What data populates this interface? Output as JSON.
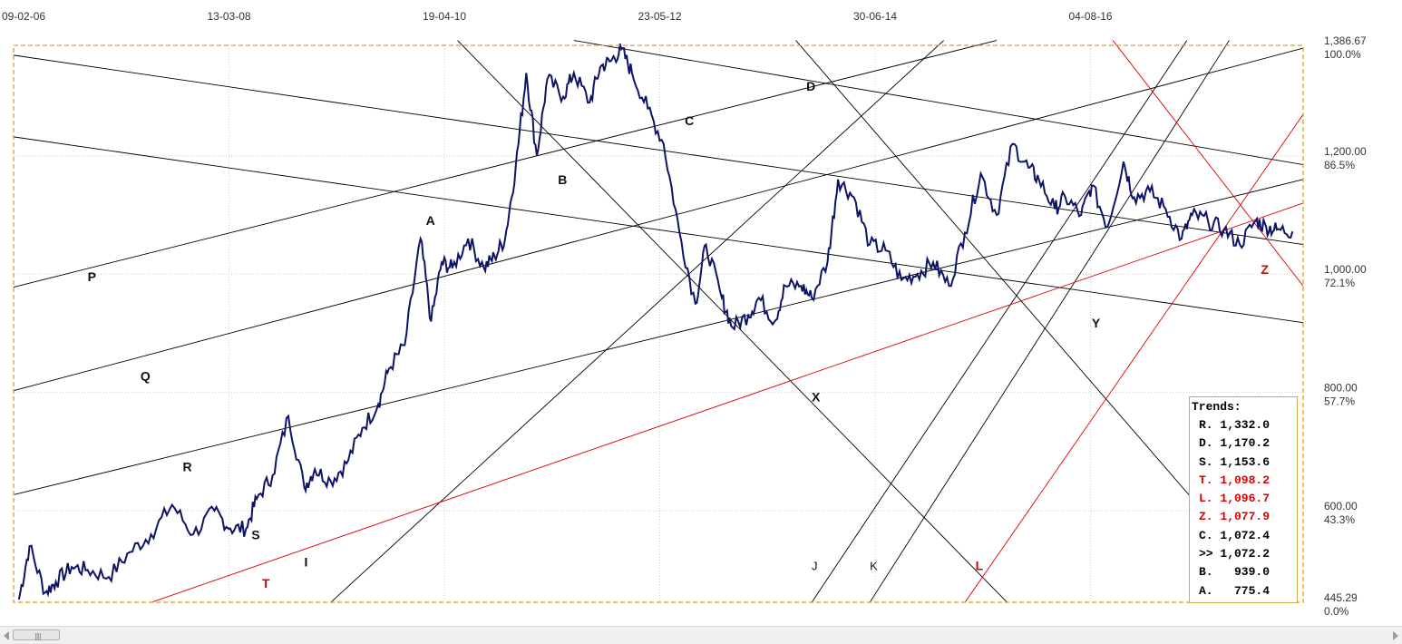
{
  "chart_data": {
    "type": "line",
    "title": "",
    "xlabel": "",
    "ylabel": "",
    "x_tick_labels": [
      "09-02-06",
      "13-03-08",
      "19-04-10",
      "23-05-12",
      "30-06-14",
      "04-08-16"
    ],
    "y_ticks": [
      {
        "value": 1386.67,
        "label": "1,386.67",
        "pct": "100.0%"
      },
      {
        "value": 1200.0,
        "label": "1,200.00",
        "pct": "86.5%"
      },
      {
        "value": 1000.0,
        "label": "1,000.00",
        "pct": "72.1%"
      },
      {
        "value": 800.0,
        "label": "800.00",
        "pct": "57.7%"
      },
      {
        "value": 600.0,
        "label": "600.00",
        "pct": "43.3%"
      },
      {
        "value": 445.29,
        "label": "445.29",
        "pct": "0.0%"
      }
    ],
    "ylim": [
      445.29,
      1386.67
    ],
    "grid": true,
    "colors": {
      "price": "#0d1466",
      "trend_black": "#000000",
      "trend_red": "#dd0000",
      "frame": "#d6a020"
    },
    "price_series": {
      "name": "",
      "x": [
        2006.05,
        2006.15,
        2006.3,
        2006.4,
        2006.55,
        2006.7,
        2006.9,
        2007.1,
        2007.3,
        2007.5,
        2007.7,
        2007.9,
        2008.05,
        2008.2,
        2008.3,
        2008.45,
        2008.6,
        2008.75,
        2008.85,
        2009.0,
        2009.15,
        2009.3,
        2009.45,
        2009.55,
        2009.7,
        2009.85,
        2009.95,
        2010.05,
        2010.15,
        2010.3,
        2010.45,
        2010.55,
        2010.65,
        2010.75,
        2010.85,
        2010.95,
        2011.05,
        2011.2,
        2011.3,
        2011.45,
        2011.55,
        2011.65,
        2011.75,
        2011.85,
        2012.0,
        2012.15,
        2012.3,
        2012.45,
        2012.55,
        2012.7,
        2012.8,
        2012.95,
        2013.05,
        2013.2,
        2013.3,
        2013.45,
        2013.55,
        2013.7,
        2013.8,
        2013.95,
        2014.1,
        2014.25,
        2014.4,
        2014.55,
        2014.7,
        2014.85,
        2015.0,
        2015.15,
        2015.3,
        2015.45,
        2015.6,
        2015.7,
        2015.85,
        2015.95,
        2016.1,
        2016.2,
        2016.35,
        2016.5,
        2016.6,
        2016.75,
        2016.9,
        2017.05,
        2017.15,
        2017.3,
        2017.45,
        2017.6,
        2017.75,
        2017.85,
        2017.95,
        2018.1
      ],
      "values": [
        450,
        540,
        462,
        480,
        505,
        500,
        488,
        530,
        560,
        610,
        560,
        600,
        570,
        570,
        620,
        660,
        760,
        640,
        670,
        650,
        680,
        740,
        780,
        840,
        880,
        1060,
        920,
        1020,
        1010,
        1060,
        1010,
        1030,
        1060,
        1180,
        1340,
        1200,
        1330,
        1300,
        1340,
        1290,
        1350,
        1360,
        1380,
        1340,
        1280,
        1220,
        1070,
        950,
        1050,
        960,
        910,
        930,
        960,
        920,
        980,
        980,
        960,
        1020,
        1160,
        1130,
        1050,
        1040,
        990,
        1000,
        1020,
        980,
        1070,
        1170,
        1100,
        1220,
        1180,
        1160,
        1110,
        1130,
        1100,
        1150,
        1080,
        1190,
        1130,
        1140,
        1110,
        1060,
        1100,
        1090,
        1075,
        1050,
        1090,
        1080,
        1075,
        1072
      ]
    },
    "trend_labels": [
      {
        "id": "P",
        "color": "black",
        "x": 2006.7,
        "y": 988
      },
      {
        "id": "Q",
        "color": "black",
        "x": 2007.2,
        "y": 820
      },
      {
        "id": "R",
        "color": "black",
        "x": 2007.6,
        "y": 667
      },
      {
        "id": "S",
        "color": "black",
        "x": 2008.25,
        "y": 552
      },
      {
        "id": "T",
        "color": "red",
        "x": 2008.35,
        "y": 470
      },
      {
        "id": "I",
        "color": "black",
        "x": 2008.75,
        "y": 506
      },
      {
        "id": "A",
        "color": "black",
        "x": 2009.9,
        "y": 1083
      },
      {
        "id": "B",
        "color": "black",
        "x": 2011.15,
        "y": 1152
      },
      {
        "id": "C",
        "color": "black",
        "x": 2012.35,
        "y": 1252
      },
      {
        "id": "D",
        "color": "black",
        "x": 2013.5,
        "y": 1310
      },
      {
        "id": "X",
        "color": "black",
        "x": 2013.55,
        "y": 785
      },
      {
        "id": "J",
        "color": "black",
        "x": 2013.55,
        "y": 500
      },
      {
        "id": "K",
        "color": "black",
        "x": 2014.1,
        "y": 500
      },
      {
        "id": "L",
        "color": "red",
        "x": 2015.1,
        "y": 500
      },
      {
        "id": "Y",
        "color": "black",
        "x": 2016.2,
        "y": 910
      },
      {
        "id": "Z",
        "color": "red",
        "x": 2017.8,
        "y": 1000
      }
    ],
    "trends_legend": {
      "title": "Trends:",
      "rows": [
        {
          "label": "R.",
          "value": "1,332.0",
          "color": "black"
        },
        {
          "label": "D.",
          "value": "1,170.2",
          "color": "black"
        },
        {
          "label": "S.",
          "value": "1,153.6",
          "color": "black"
        },
        {
          "label": "T.",
          "value": "1,098.2",
          "color": "red"
        },
        {
          "label": "L.",
          "value": "1,096.7",
          "color": "red"
        },
        {
          "label": "Z.",
          "value": "1,077.9",
          "color": "red"
        },
        {
          "label": "C.",
          "value": "1,072.4",
          "color": "black"
        },
        {
          "label": ">>",
          "value": "1,072.2",
          "color": "black"
        },
        {
          "label": "B.",
          "value": "  939.0",
          "color": "black"
        },
        {
          "label": "A.",
          "value": "  775.4",
          "color": "black"
        }
      ]
    }
  }
}
